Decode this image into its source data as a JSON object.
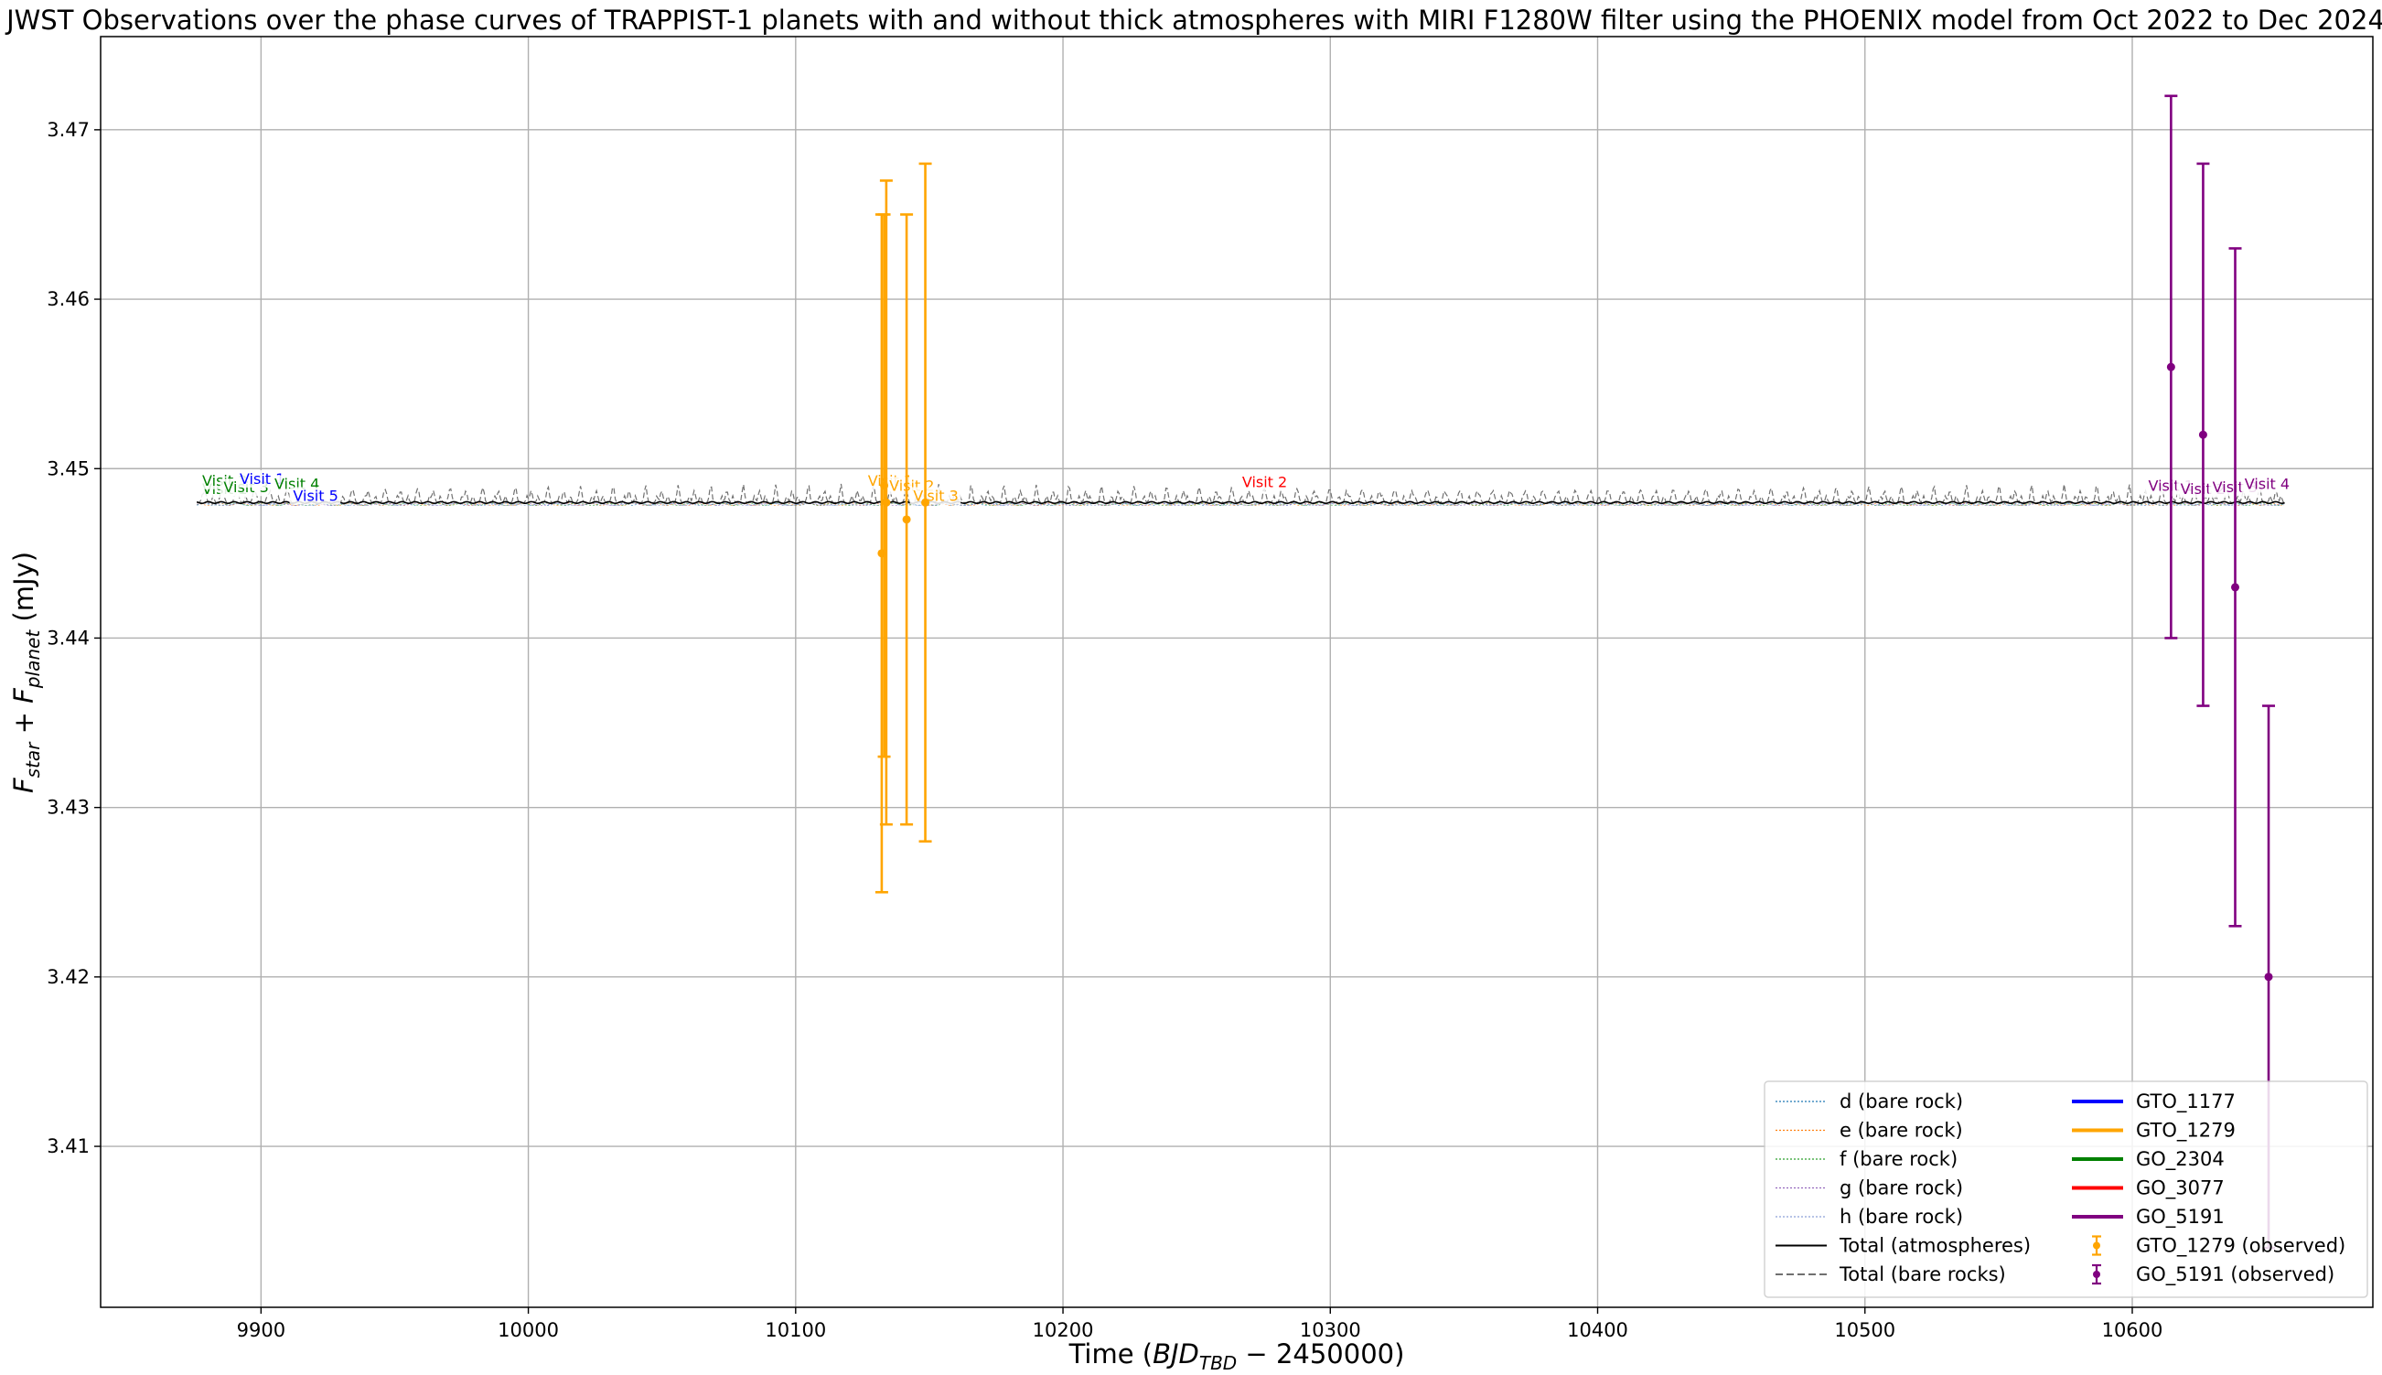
{
  "chart_data": {
    "type": "line",
    "title": "JWST Observations over the phase curves of TRAPPIST-1 planets with and without thick atmospheres with MIRI F1280W filter using the PHOENIX model from Oct 2022 to Dec 2024",
    "xlabel_main": "Time (",
    "xlabel_math": "BJD",
    "xlabel_sub": "TBD",
    "xlabel_tail": " − 2450000)",
    "ylabel_parts": [
      "F",
      "star",
      " + ",
      "F",
      "planet",
      " (mJy)"
    ],
    "xlim": [
      9840,
      10690
    ],
    "ylim": [
      3.4005,
      3.4755
    ],
    "xticks": [
      9900,
      10000,
      10100,
      10200,
      10300,
      10400,
      10500,
      10600
    ],
    "xtick_labels": [
      "9900",
      "10000",
      "10100",
      "10200",
      "10300",
      "10400",
      "10500",
      "10600"
    ],
    "yticks": [
      3.41,
      3.42,
      3.43,
      3.44,
      3.45,
      3.46,
      3.47
    ],
    "ytick_labels": [
      "3.41",
      "3.42",
      "3.43",
      "3.44",
      "3.45",
      "3.46",
      "3.47"
    ],
    "grid": true,
    "legend_placement": "lower-right",
    "model_baseline": 3.448,
    "model_range": [
      9876,
      10657
    ],
    "program_colors": {
      "GTO_1177": "#0000ff",
      "GTO_1279": "#ffa500",
      "GO_2304": "#008000",
      "GO_3077": "#ff0000",
      "GO_5191": "#800080"
    },
    "observed": [
      {
        "name": "GTO_1279 (observed)",
        "color": "#ffa500",
        "points": [
          {
            "x": 10132.2,
            "y": 3.445,
            "err": 0.02
          },
          {
            "x": 10133.1,
            "y": 3.449,
            "err": 0.016
          },
          {
            "x": 10133.9,
            "y": 3.448,
            "err": 0.019
          },
          {
            "x": 10141.5,
            "y": 3.447,
            "err": 0.018
          },
          {
            "x": 10148.5,
            "y": 3.448,
            "err": 0.02
          }
        ]
      },
      {
        "name": "GO_5191 (observed)",
        "color": "#800080",
        "points": [
          {
            "x": 10614.5,
            "y": 3.456,
            "err": 0.016
          },
          {
            "x": 10626.5,
            "y": 3.452,
            "err": 0.016
          },
          {
            "x": 10638.5,
            "y": 3.443,
            "err": 0.02
          },
          {
            "x": 10651.0,
            "y": 3.42,
            "err": 0.016
          }
        ]
      }
    ],
    "visit_labels": [
      {
        "text": "Visit 1",
        "x": 9878,
        "y": 3.4485,
        "color": "#008000"
      },
      {
        "text": "Visit 2",
        "x": 9878,
        "y": 3.449,
        "color": "#008000"
      },
      {
        "text": "Visit 3",
        "x": 9886,
        "y": 3.4486,
        "color": "#008000"
      },
      {
        "text": "Visit 1",
        "x": 9892,
        "y": 3.4491,
        "color": "#0000ff"
      },
      {
        "text": "Visit 4",
        "x": 9905,
        "y": 3.4488,
        "color": "#008000"
      },
      {
        "text": "Visit 5",
        "x": 9912,
        "y": 3.4481,
        "color": "#0000ff"
      },
      {
        "text": "Visit 1",
        "x": 10127,
        "y": 3.449,
        "color": "#ffa500"
      },
      {
        "text": "Visit 2",
        "x": 10135,
        "y": 3.4487,
        "color": "#ffa500"
      },
      {
        "text": "Visit 3",
        "x": 10144,
        "y": 3.4481,
        "color": "#ffa500"
      },
      {
        "text": "Visit 2",
        "x": 10267,
        "y": 3.4489,
        "color": "#ff0000"
      },
      {
        "text": "Visit 1",
        "x": 10606,
        "y": 3.4487,
        "color": "#800080"
      },
      {
        "text": "Visit 2",
        "x": 10618,
        "y": 3.4485,
        "color": "#800080"
      },
      {
        "text": "Visit 3",
        "x": 10630,
        "y": 3.4486,
        "color": "#800080"
      },
      {
        "text": "Visit 4",
        "x": 10642,
        "y": 3.4488,
        "color": "#800080"
      }
    ],
    "legend_col1": [
      {
        "label": "d (bare rock)",
        "color": "#1f77b4",
        "style": "dotted"
      },
      {
        "label": "e (bare rock)",
        "color": "#ff7f0e",
        "style": "dotted"
      },
      {
        "label": "f (bare rock)",
        "color": "#2ca02c",
        "style": "dotted"
      },
      {
        "label": "g (bare rock)",
        "color": "#9467bd",
        "style": "dotted"
      },
      {
        "label": "h (bare rock)",
        "color": "#8c9fd8",
        "style": "dotted"
      },
      {
        "label": "Total (atmospheres)",
        "color": "#000000",
        "style": "solid"
      },
      {
        "label": "Total (bare rocks)",
        "color": "#707070",
        "style": "dashed"
      }
    ],
    "legend_col2": [
      {
        "label": "GTO_1177",
        "color": "#0000ff",
        "style": "thick"
      },
      {
        "label": "GTO_1279",
        "color": "#ffa500",
        "style": "thick"
      },
      {
        "label": "GO_2304",
        "color": "#008000",
        "style": "thick"
      },
      {
        "label": "GO_3077",
        "color": "#ff0000",
        "style": "thick"
      },
      {
        "label": "GO_5191",
        "color": "#800080",
        "style": "thick"
      },
      {
        "label": "GTO_1279 (observed)",
        "color": "#ffa500",
        "style": "errorbar"
      },
      {
        "label": "GO_5191 (observed)",
        "color": "#800080",
        "style": "errorbar"
      }
    ]
  }
}
